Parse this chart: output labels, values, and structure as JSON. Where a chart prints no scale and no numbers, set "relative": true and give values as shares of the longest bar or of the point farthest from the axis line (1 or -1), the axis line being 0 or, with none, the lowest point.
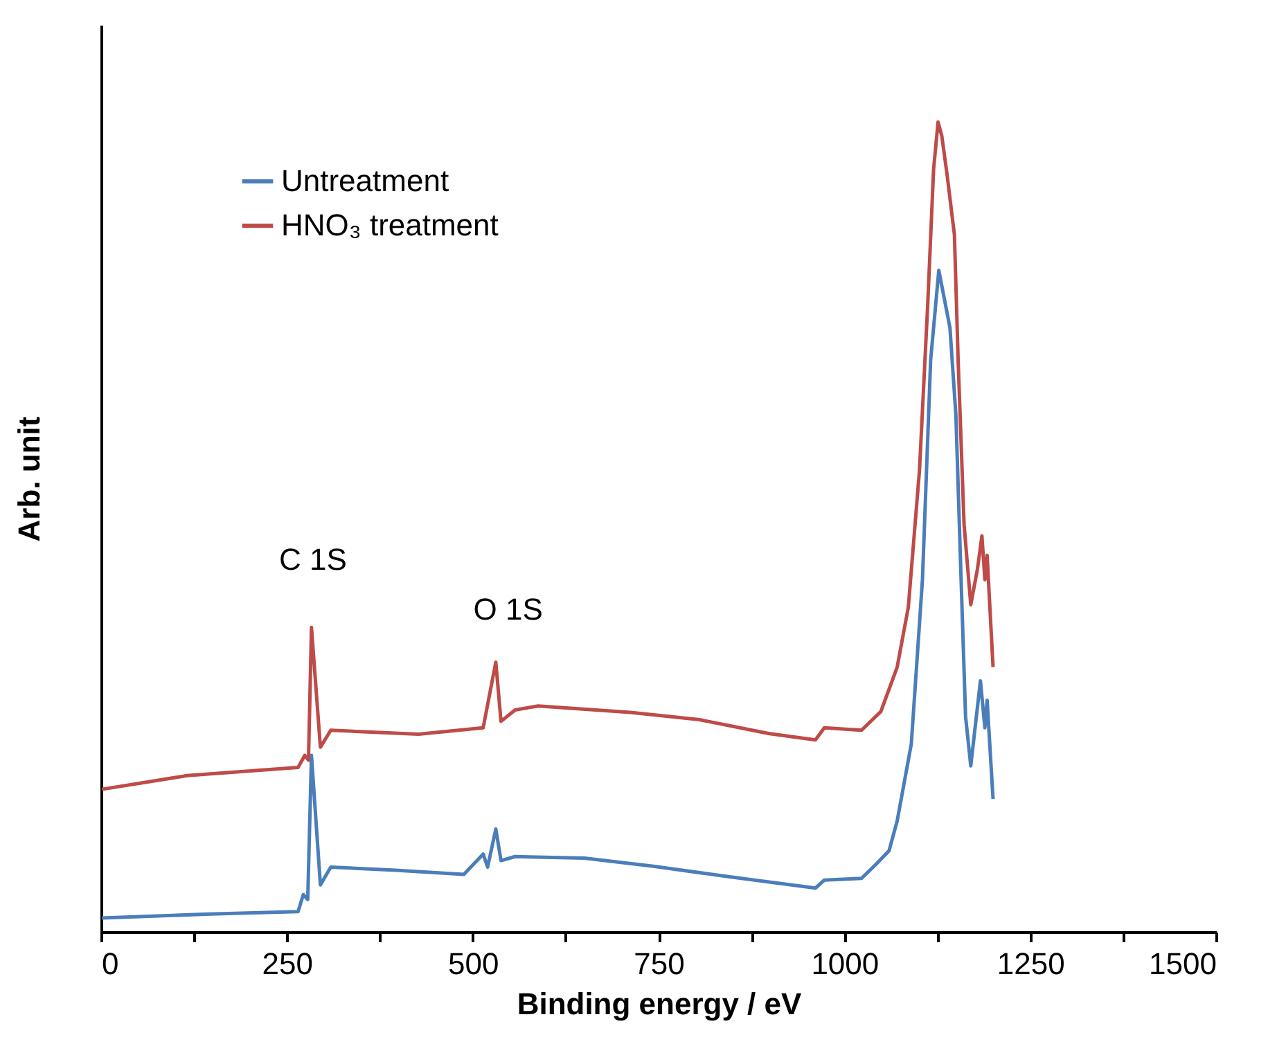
{
  "chart_data": {
    "type": "line",
    "relative": true,
    "xlabel": "Binding energy / eV",
    "ylabel": "Arb. unit",
    "xlim": [
      0,
      1500
    ],
    "xticks": [
      0,
      {
        "value": 125,
        "label": null
      },
      250,
      {
        "value": 375,
        "label": null
      },
      500,
      {
        "value": 625,
        "label": null
      },
      750,
      {
        "value": 875,
        "label": null
      },
      1000,
      {
        "value": 1125,
        "label": null
      },
      1250,
      {
        "value": 1375,
        "label": null
      },
      1500
    ],
    "legend": "top left",
    "grid": false,
    "marker": "none",
    "line_style": "solid",
    "annotations": [
      "C 1S",
      "O 1S"
    ],
    "series": [
      {
        "name": "Untreatment",
        "color": "#4a7ebb",
        "x": [
          1,
          147,
          265,
          272,
          278,
          283,
          295,
          309,
          396,
          488,
          514,
          520,
          531,
          538,
          557,
          650,
          743,
          837,
          961,
          973,
          1023,
          1042,
          1060,
          1071,
          1090,
          1105,
          1116,
          1127,
          1142,
          1150,
          1157,
          1163,
          1170,
          1183,
          1189,
          1192,
          1200
        ],
        "values": [
          0.017,
          0.022,
          0.025,
          0.046,
          0.04,
          0.218,
          0.058,
          0.08,
          0.076,
          0.071,
          0.096,
          0.08,
          0.127,
          0.088,
          0.093,
          0.091,
          0.081,
          0.069,
          0.054,
          0.064,
          0.066,
          0.083,
          0.1,
          0.137,
          0.232,
          0.435,
          0.706,
          0.817,
          0.746,
          0.638,
          0.435,
          0.266,
          0.205,
          0.31,
          0.252,
          0.286,
          0.164
        ]
      },
      {
        "name": "HNO₃ treatment",
        "color": "#be4b48",
        "x": [
          1,
          116,
          265,
          274,
          279,
          283,
          295,
          309,
          427,
          514,
          531,
          538,
          557,
          588,
          712,
          805,
          898,
          961,
          973,
          1023,
          1049,
          1071,
          1086,
          1101,
          1112,
          1120,
          1126,
          1131,
          1138,
          1148,
          1153,
          1161,
          1170,
          1179,
          1185,
          1189,
          1192,
          1200
        ],
        "values": [
          0.176,
          0.193,
          0.203,
          0.218,
          0.212,
          0.376,
          0.228,
          0.249,
          0.244,
          0.252,
          0.333,
          0.26,
          0.274,
          0.279,
          0.271,
          0.262,
          0.245,
          0.237,
          0.252,
          0.249,
          0.272,
          0.327,
          0.401,
          0.57,
          0.773,
          0.942,
          1.0,
          0.983,
          0.936,
          0.861,
          0.706,
          0.503,
          0.404,
          0.448,
          0.489,
          0.435,
          0.465,
          0.327
        ]
      }
    ]
  }
}
